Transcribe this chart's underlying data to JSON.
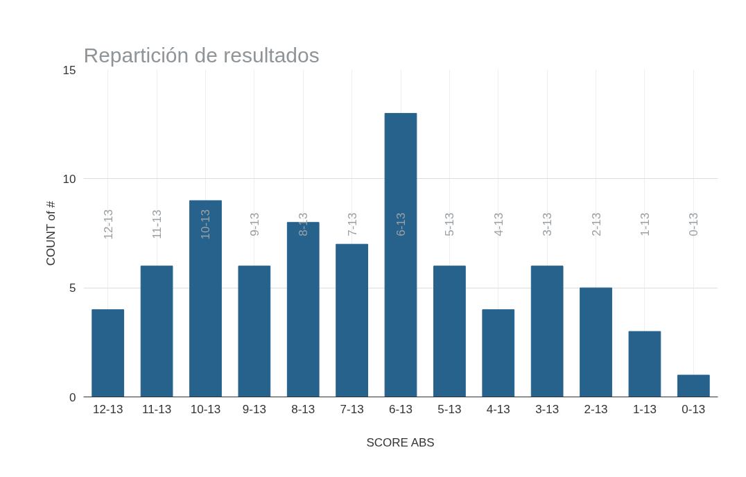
{
  "chart_data": {
    "type": "bar",
    "title": "Repartición de resultados",
    "xlabel": "SCORE ABS",
    "ylabel": "COUNT of #",
    "categories": [
      "12-13",
      "11-13",
      "10-13",
      "9-13",
      "8-13",
      "7-13",
      "6-13",
      "5-13",
      "4-13",
      "3-13",
      "2-13",
      "1-13",
      "0-13"
    ],
    "values": [
      4,
      6,
      9,
      6,
      8,
      7,
      13,
      6,
      4,
      6,
      5,
      3,
      1
    ],
    "color": "#27628d",
    "ylim": [
      0,
      15
    ],
    "yticks": [
      0,
      5,
      10,
      15
    ],
    "grid": true,
    "annotations": [
      "12-13",
      "11-13",
      "10-13",
      "9-13",
      "8-13",
      "7-13",
      "6-13",
      "5-13",
      "4-13",
      "3-13",
      "2-13",
      "1-13",
      "0-13"
    ]
  }
}
